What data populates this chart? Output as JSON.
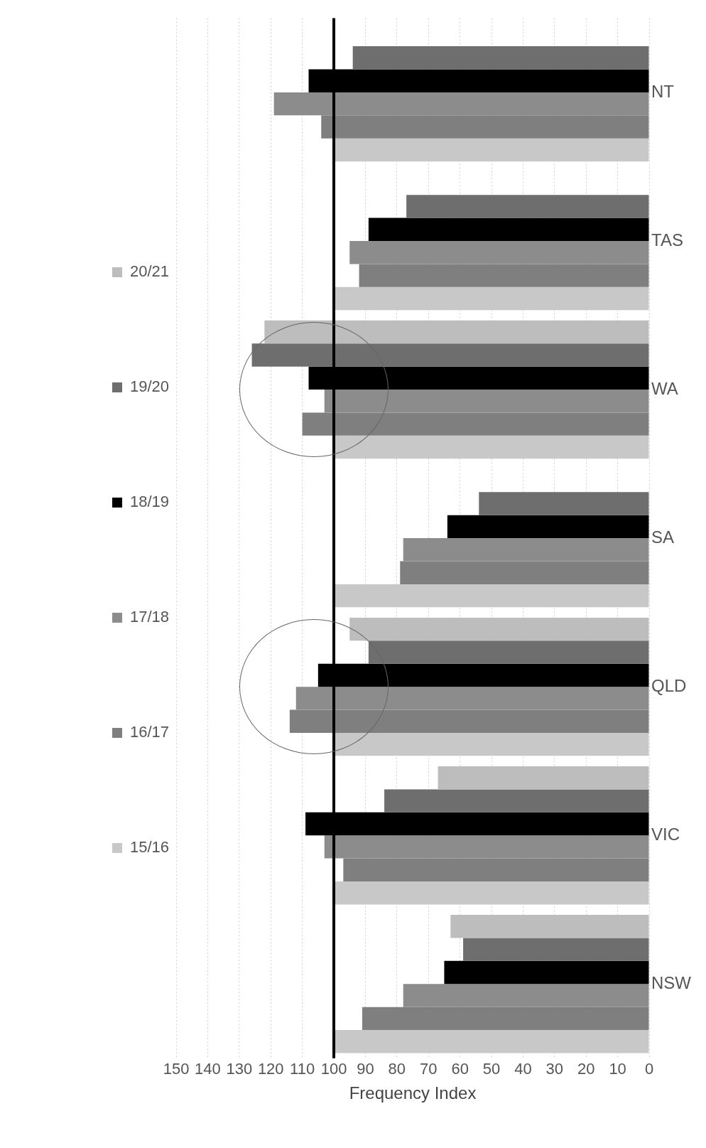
{
  "chart_data": {
    "type": "bar",
    "orientation": "horizontal",
    "xlabel": "Frequency Index",
    "categories": [
      "NT",
      "TAS",
      "WA",
      "SA",
      "QLD",
      "VIC",
      "NSW"
    ],
    "series": [
      {
        "name": "15/16",
        "color": "#c8c8c8",
        "values": [
          100,
          100,
          100,
          100,
          100,
          100,
          100
        ]
      },
      {
        "name": "16/17",
        "color": "#7f7f7f",
        "values": [
          104,
          92,
          110,
          79,
          114,
          97,
          91
        ]
      },
      {
        "name": "17/18",
        "color": "#8c8c8c",
        "values": [
          119,
          95,
          103,
          78,
          112,
          103,
          78
        ]
      },
      {
        "name": "18/19",
        "color": "#000000",
        "values": [
          108,
          89,
          108,
          64,
          105,
          109,
          65
        ]
      },
      {
        "name": "19/20",
        "color": "#6e6e6e",
        "values": [
          94,
          77,
          126,
          54,
          89,
          84,
          59
        ]
      },
      {
        "name": "20/21",
        "color": "#bdbdbd",
        "values": [
          null,
          null,
          122,
          null,
          95,
          67,
          63
        ]
      }
    ],
    "xlim": [
      150,
      0
    ],
    "xticks": [
      0,
      10,
      20,
      30,
      40,
      50,
      60,
      70,
      80,
      90,
      100,
      110,
      120,
      130,
      140,
      150
    ],
    "grid": "x",
    "legend": "left",
    "ref_lines": [
      {
        "axis": "x",
        "value": 100,
        "color": "#000000"
      }
    ]
  }
}
